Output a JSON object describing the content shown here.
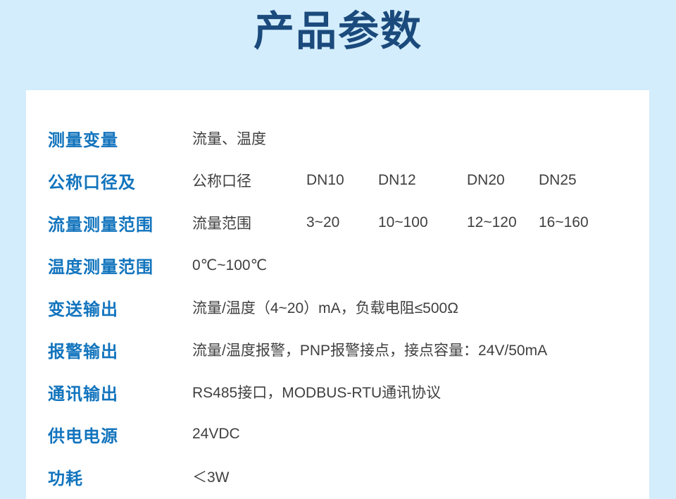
{
  "page": {
    "title": "产品参数"
  },
  "colors": {
    "background": "#d3edfc",
    "card": "#ffffff",
    "title": "#1b4a7c",
    "label": "#1274bd",
    "text": "#404040"
  },
  "table": {
    "rows": [
      {
        "label": "测量变量",
        "value": "流量、温度"
      },
      {
        "label": "公称口径及",
        "cells": [
          "公称口径",
          "DN10",
          "DN12",
          "DN20",
          "DN25"
        ]
      },
      {
        "label": "流量测量范围",
        "cells": [
          "流量范围",
          "3~20",
          "10~100",
          "12~120",
          "16~160"
        ]
      },
      {
        "label": "温度测量范围",
        "value": "0℃~100℃"
      },
      {
        "label": "变送输出",
        "value": "流量/温度（4~20）mA，负载电阻≤500Ω"
      },
      {
        "label": "报警输出",
        "value": "流量/温度报警，PNP报警接点，接点容量：24V/50mA"
      },
      {
        "label": "通讯输出",
        "value": "RS485接口，MODBUS-RTU通讯协议"
      },
      {
        "label": "供电电源",
        "value": "24VDC"
      },
      {
        "label": "功耗",
        "value": "＜3W"
      }
    ]
  }
}
